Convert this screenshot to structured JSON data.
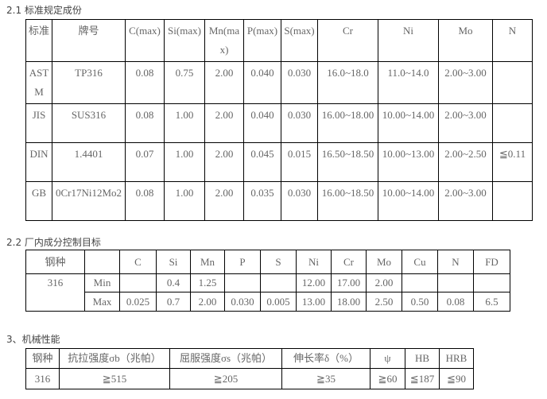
{
  "s1": {
    "title": "2.1 标准规定成份",
    "headers": [
      "标准",
      "牌号",
      "C(max)",
      "Si(max)",
      "Mn(max)",
      "P(max)",
      "S(max)",
      "Cr",
      "Ni",
      "Mo",
      "N"
    ],
    "rows": [
      [
        "ASTM",
        "TP316",
        "0.08",
        "0.75",
        "2.00",
        "0.040",
        "0.030",
        "16.0~18.0",
        "11.0~14.0",
        "2.00~3.00",
        ""
      ],
      [
        "JIS",
        "SUS316",
        "0.08",
        "1.00",
        "2.00",
        "0.040",
        "0.030",
        "16.00~18.00",
        "10.00~14.00",
        "2.00~3.00",
        ""
      ],
      [
        "DIN",
        "1.4401",
        "0.07",
        "1.00",
        "2.00",
        "0.045",
        "0.015",
        "16.50~18.50",
        "10.00~13.00",
        "2.00~2.50",
        "≦0.11"
      ],
      [
        "GB",
        "0Cr17Ni12Mo2",
        "0.08",
        "1.00",
        "2.00",
        "0.035",
        "0.030",
        "16.00~18.50",
        "10.00~14.00",
        "2.00~3.00",
        ""
      ]
    ]
  },
  "s2": {
    "title": "2.2 厂内成分控制目标",
    "headers": [
      "钢种",
      "",
      "C",
      "Si",
      "Mn",
      "P",
      "S",
      "Ni",
      "Cr",
      "Mo",
      "Cu",
      "N",
      "FD"
    ],
    "grade": "316",
    "min": [
      "Min",
      "",
      "0.4",
      "1.25",
      "",
      "",
      "12.00",
      "17.00",
      "2.00",
      "",
      "",
      ""
    ],
    "max": [
      "Max",
      "0.025",
      "0.7",
      "2.00",
      "0.030",
      "0.005",
      "13.00",
      "18.00",
      "2.50",
      "0.50",
      "0.08",
      "6.5"
    ]
  },
  "s3": {
    "title": "3、机械性能",
    "headers": [
      "钢种",
      "抗拉强度σb（兆帕）",
      "屈服强度σs（兆帕）",
      "伸长率δ（%）",
      "ψ",
      "HB",
      "HRB"
    ],
    "row": [
      "316",
      "≧515",
      "≧205",
      "≧35",
      "≧60",
      "≦187",
      "≦90"
    ]
  }
}
